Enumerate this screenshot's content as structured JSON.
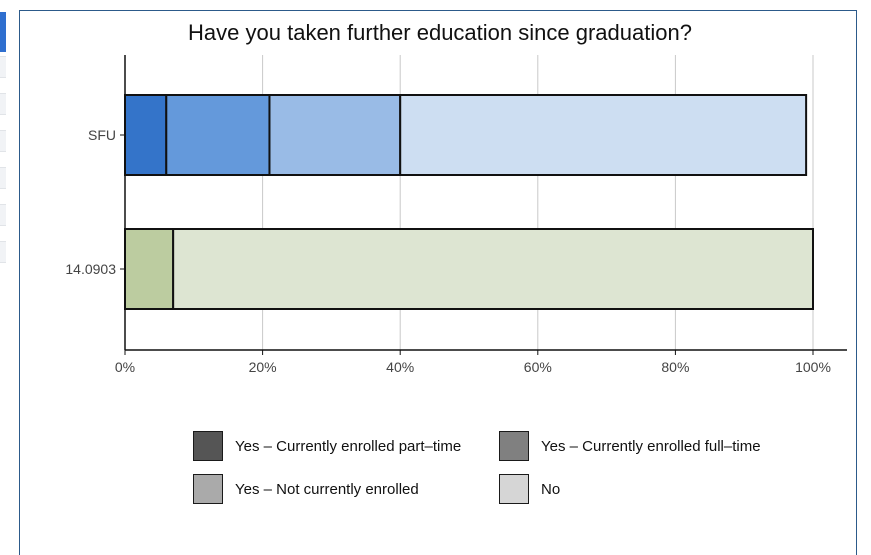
{
  "chart_data": {
    "type": "bar",
    "orientation": "horizontal",
    "stacked": true,
    "title": "Have you taken further education since graduation?",
    "categories": [
      "SFU",
      "14.0903"
    ],
    "series": [
      {
        "name": "Yes – Currently enrolled part–time",
        "values": [
          6,
          7
        ],
        "colors": [
          "#3474c9",
          "#bccca0"
        ]
      },
      {
        "name": "Yes – Currently enrolled full–time",
        "values": [
          15,
          0
        ],
        "colors": [
          "#6499db",
          "#bccca0"
        ]
      },
      {
        "name": "Yes – Not currently enrolled",
        "values": [
          19,
          0
        ],
        "colors": [
          "#99bbe6",
          "#bccca0"
        ]
      },
      {
        "name": "No",
        "values": [
          59,
          93
        ],
        "colors": [
          "#cddef2",
          "#dde5d2"
        ]
      }
    ],
    "xlim": [
      0,
      100
    ],
    "x_ticks": [
      "0%",
      "20%",
      "40%",
      "60%",
      "80%",
      "100%"
    ],
    "x_tick_values": [
      0,
      20,
      40,
      60,
      80,
      100
    ],
    "grid": "vertical",
    "legend_position": "bottom",
    "legend_colors": [
      "#555555",
      "#808080",
      "#aaaaaa",
      "#d6d6d6"
    ]
  }
}
